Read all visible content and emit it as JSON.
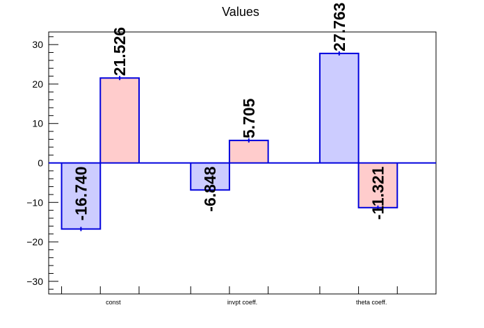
{
  "chart_data": {
    "type": "bar",
    "title": "Values",
    "xlabel": "",
    "ylabel": "",
    "categories": [
      "const",
      "invpt coeff.",
      "theta coeff."
    ],
    "series": [
      {
        "values": [
          -16.74,
          -6.848,
          27.763
        ],
        "labels": [
          "-16.740",
          "-6.848",
          "27.763"
        ],
        "fill": "#ccccff",
        "stroke": "#0000dd"
      },
      {
        "values": [
          21.526,
          5.705,
          -11.321
        ],
        "labels": [
          "21.526",
          "5.705",
          "-11.321"
        ],
        "fill": "#ffcccc",
        "stroke": "#0000dd"
      }
    ],
    "ylim": [
      -33.2,
      33.2
    ],
    "yticks": [
      -30,
      -20,
      -10,
      0,
      10,
      20,
      30
    ],
    "ytick_labels": [
      "−30",
      "−20",
      "−10",
      "0",
      "10",
      "20",
      "30"
    ],
    "grid": false,
    "legend": "none",
    "colors": {
      "axis": "#000000",
      "zero_line": "#0000dd",
      "bar_outline": "#0000dd"
    }
  }
}
